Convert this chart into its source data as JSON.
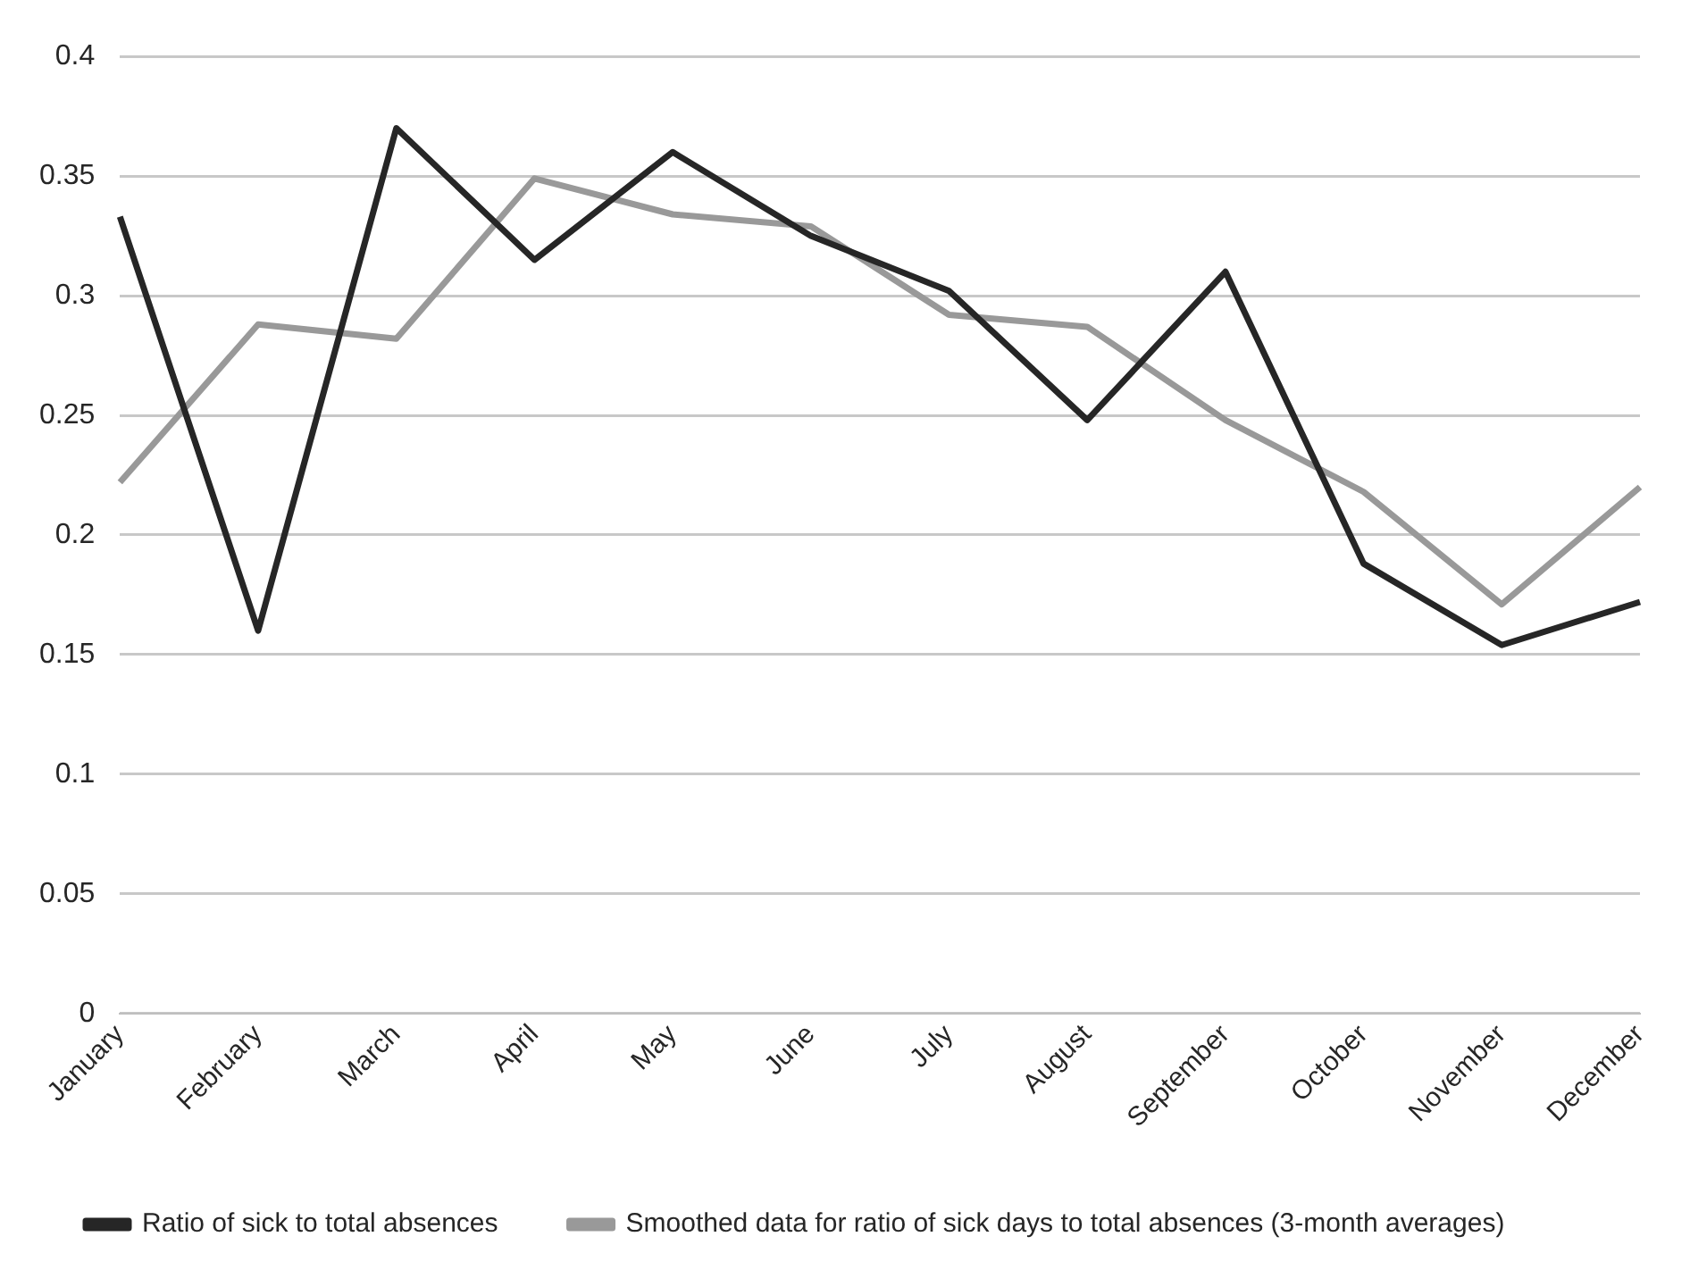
{
  "chart_data": {
    "type": "line",
    "categories": [
      "January",
      "February",
      "March",
      "April",
      "May",
      "June",
      "July",
      "August",
      "September",
      "October",
      "November",
      "December"
    ],
    "series": [
      {
        "name": "Ratio of sick to total absences",
        "color": "#262626",
        "values": [
          0.333,
          0.16,
          0.37,
          0.315,
          0.36,
          0.325,
          0.302,
          0.248,
          0.31,
          0.188,
          0.154,
          0.172
        ]
      },
      {
        "name": "Smoothed data for ratio of sick days to total absences (3-month averages)",
        "color": "#999999",
        "values": [
          0.222,
          0.288,
          0.282,
          0.349,
          0.334,
          0.329,
          0.292,
          0.287,
          0.248,
          0.218,
          0.171,
          0.22
        ]
      }
    ],
    "ylim": [
      0,
      0.4
    ],
    "yticks": [
      0,
      0.05,
      0.1,
      0.15,
      0.2,
      0.25,
      0.3,
      0.35,
      0.4
    ],
    "grid": "y",
    "legend": "bottom",
    "marker": "none",
    "line_style": "solid"
  }
}
